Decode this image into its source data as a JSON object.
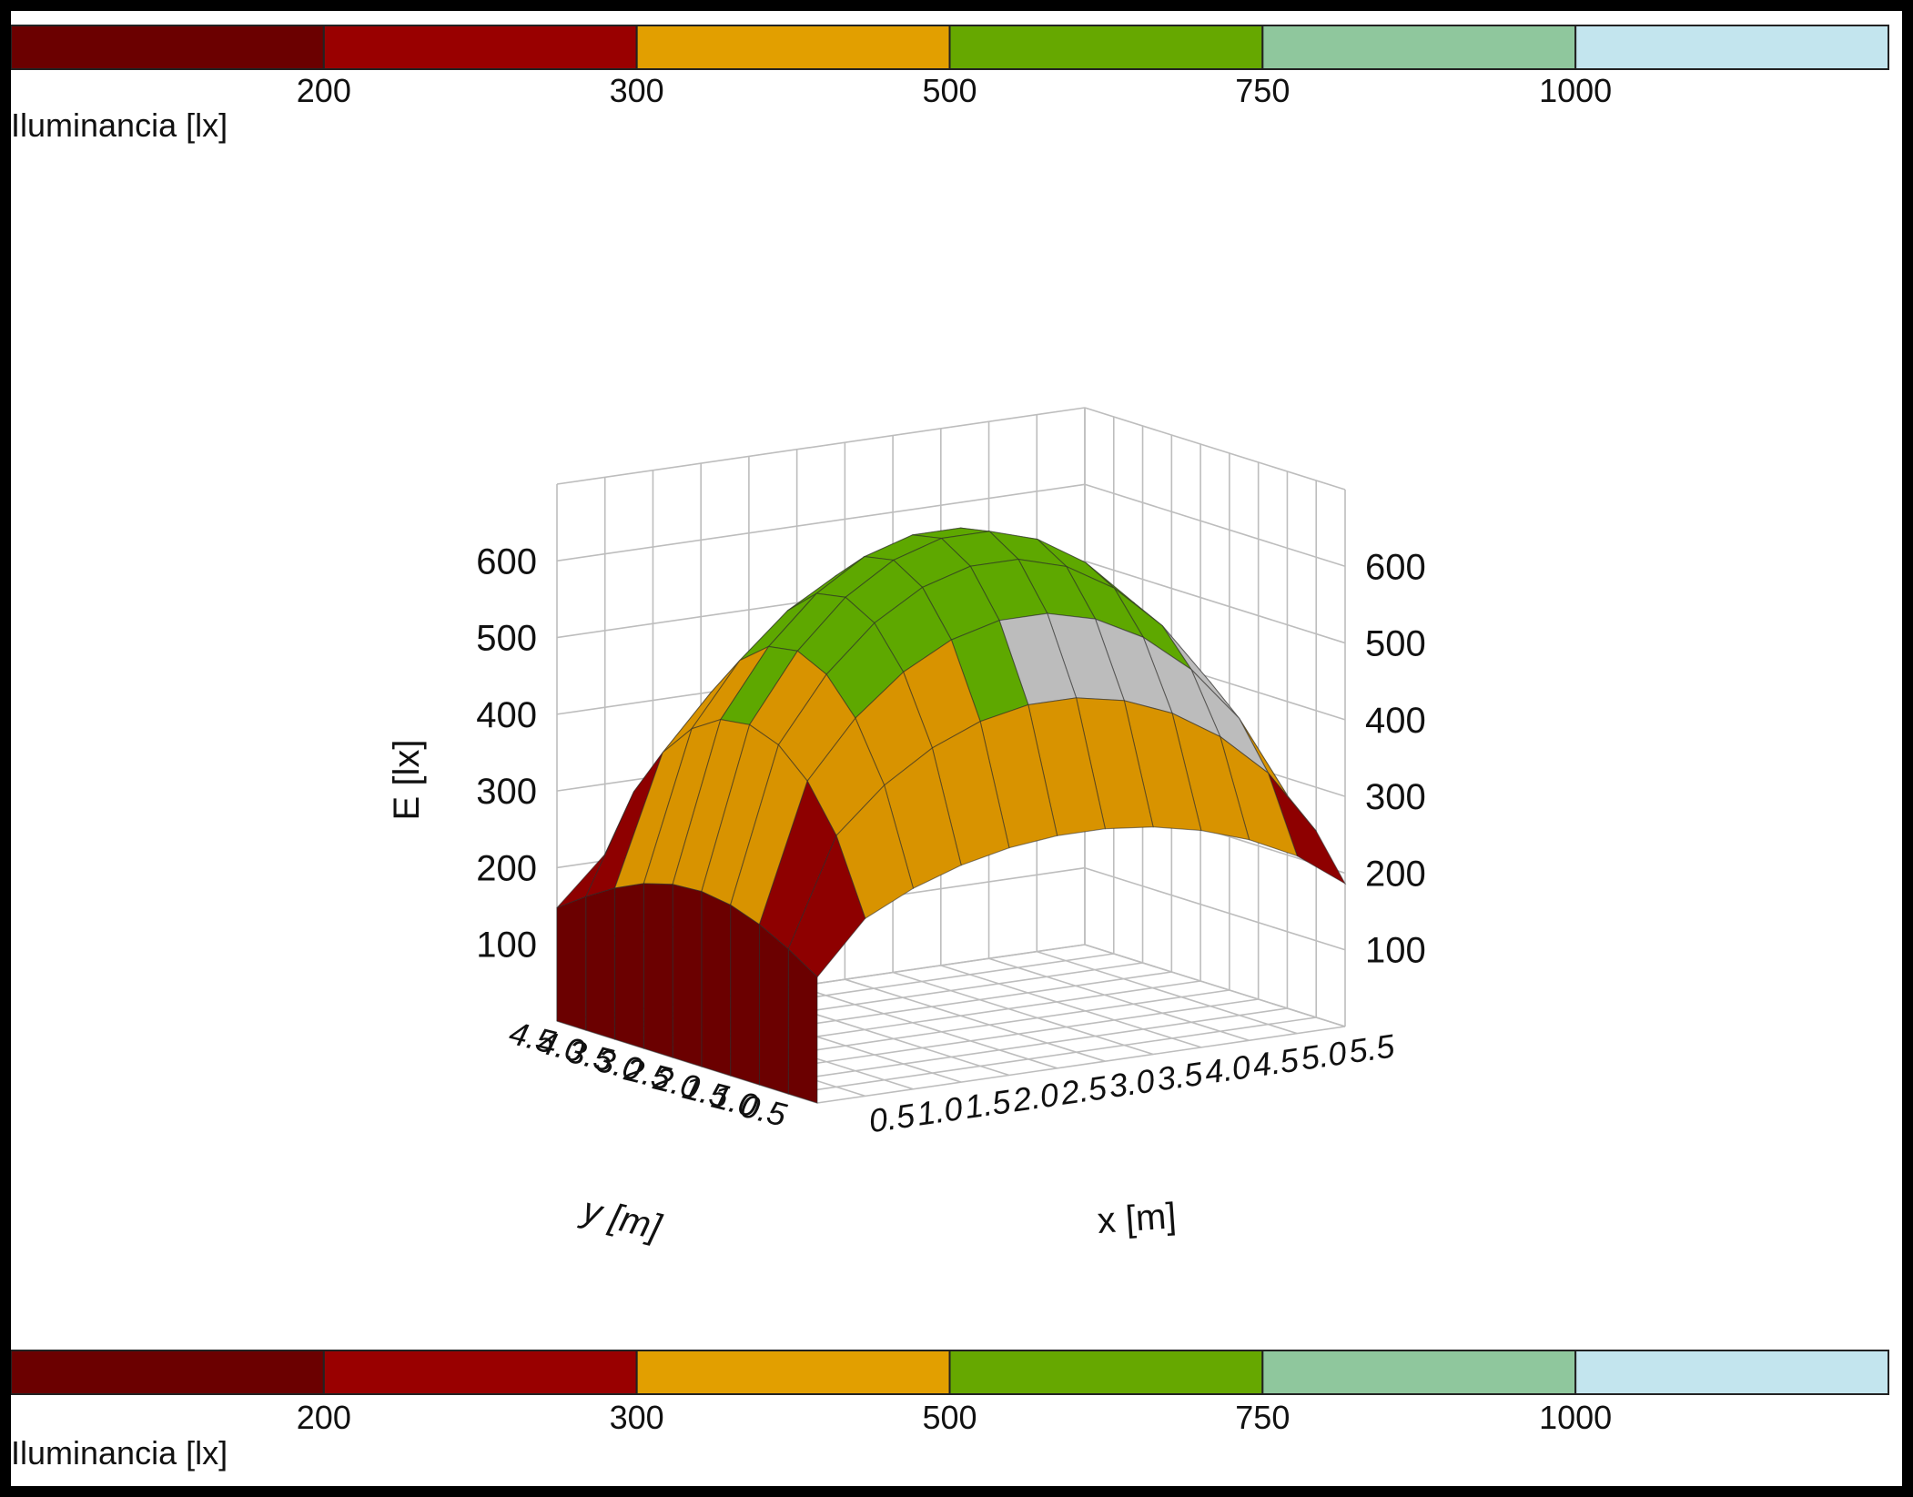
{
  "chart_data": {
    "type": "surface3d",
    "zlabel": "E [lx]",
    "xlabel": "x [m]",
    "ylabel": "y [m]",
    "z_ticks": [
      "100",
      "200",
      "300",
      "400",
      "500",
      "600"
    ],
    "x_ticks": [
      "0.5",
      "1.0",
      "1.5",
      "2.0",
      "2.5",
      "3.0",
      "3.5",
      "4.0",
      "4.5",
      "5.0",
      "5.5"
    ],
    "y_ticks": [
      "0.5",
      "1.0",
      "1.5",
      "2.0",
      "2.5",
      "3.0",
      "3.5",
      "4.0",
      "4.5"
    ],
    "legend": {
      "title": "Iluminancia [lx]",
      "breaks": [
        "200",
        "300",
        "500",
        "750",
        "1000"
      ],
      "bands": [
        {
          "range": "< 200",
          "color": "#6b0000"
        },
        {
          "range": "200-300",
          "color": "#990000"
        },
        {
          "range": "300-500",
          "color": "#e29f00"
        },
        {
          "range": "500-750",
          "color": "#66a800"
        },
        {
          "range": "750-1000",
          "color": "#8fc79d"
        },
        {
          "range": "> 1000",
          "color": "#c3e5ee"
        }
      ]
    },
    "surface_colors": {
      "below_200": "#6b0000",
      "200_300": "#8e0000",
      "300_500": "#d89300",
      "500_750": "#5ea800",
      "back_region": "#bcbcbc"
    }
  }
}
